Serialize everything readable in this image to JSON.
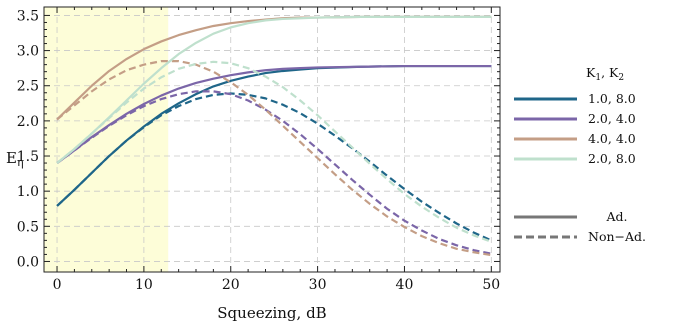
{
  "chart_data": {
    "type": "line",
    "xlabel": "Squeezing, dB",
    "ylabel": "E",
    "ylabel_sub": "η",
    "xlim": [
      -1.5,
      51
    ],
    "ylim": [
      -0.15,
      3.62
    ],
    "xticks": [
      0,
      10,
      20,
      30,
      40,
      50
    ],
    "yticks": [
      0.0,
      0.5,
      1.0,
      1.5,
      2.0,
      2.5,
      3.0,
      3.5
    ],
    "xtick_labels": [
      "0",
      "10",
      "20",
      "30",
      "40",
      "50"
    ],
    "ytick_labels": [
      "0.0",
      "0.5",
      "1.0",
      "1.5",
      "2.0",
      "2.5",
      "3.0",
      "3.5"
    ],
    "grid": true,
    "highlight_region": {
      "x_start": -1.5,
      "x_end": 12.8,
      "color": "#fdfdd8"
    },
    "legend": {
      "placement": "right",
      "header_K": "K",
      "header_sub1": "1",
      "header_sep": ", K",
      "header_sub2": "2",
      "entries": [
        {
          "label": "1.0, 8.0",
          "color": "#1f6689"
        },
        {
          "label": "2.0, 4.0",
          "color": "#7b66a8"
        },
        {
          "label": "4.0, 4.0",
          "color": "#c49e86"
        },
        {
          "label": "2.0, 8.0",
          "color": "#bfe0cd"
        }
      ],
      "style_entries": [
        {
          "label": "Ad.",
          "style": "solid",
          "color": "#777777"
        },
        {
          "label": "Non−Ad.",
          "style": "dashed",
          "color": "#777777"
        }
      ]
    },
    "series": [
      {
        "key": "1.0, 8.0",
        "style": "solid",
        "color": "#1f6689",
        "x": [
          0,
          2,
          4,
          6,
          8,
          10,
          12,
          14,
          16,
          18,
          20,
          22,
          24,
          26,
          28,
          30,
          35,
          40,
          45,
          50
        ],
        "y": [
          0.79,
          1.02,
          1.26,
          1.5,
          1.72,
          1.92,
          2.1,
          2.25,
          2.38,
          2.49,
          2.57,
          2.63,
          2.68,
          2.71,
          2.73,
          2.75,
          2.77,
          2.78,
          2.78,
          2.78
        ]
      },
      {
        "key": "1.0, 8.0",
        "style": "dashed",
        "color": "#1f6689",
        "x": [
          0,
          2,
          4,
          6,
          8,
          10,
          12,
          14,
          16,
          18,
          20,
          22,
          24,
          26,
          28,
          30,
          32,
          34,
          36,
          38,
          40,
          42,
          44,
          46,
          48,
          50
        ],
        "y": [
          0.79,
          1.02,
          1.26,
          1.5,
          1.72,
          1.91,
          2.08,
          2.21,
          2.31,
          2.37,
          2.39,
          2.37,
          2.32,
          2.23,
          2.11,
          1.96,
          1.79,
          1.61,
          1.42,
          1.22,
          1.03,
          0.85,
          0.69,
          0.54,
          0.41,
          0.3
        ]
      },
      {
        "key": "2.0, 4.0",
        "style": "solid",
        "color": "#7b66a8",
        "x": [
          0,
          2,
          4,
          6,
          8,
          10,
          12,
          14,
          16,
          18,
          20,
          22,
          24,
          26,
          28,
          30,
          35,
          40,
          45,
          50
        ],
        "y": [
          1.4,
          1.58,
          1.77,
          1.94,
          2.1,
          2.24,
          2.36,
          2.46,
          2.54,
          2.6,
          2.65,
          2.69,
          2.72,
          2.74,
          2.75,
          2.76,
          2.77,
          2.78,
          2.78,
          2.78
        ]
      },
      {
        "key": "2.0, 4.0",
        "style": "dashed",
        "color": "#7b66a8",
        "x": [
          0,
          2,
          4,
          6,
          8,
          10,
          12,
          14,
          16,
          18,
          20,
          22,
          24,
          26,
          28,
          30,
          32,
          34,
          36,
          38,
          40,
          42,
          44,
          46,
          48,
          50
        ],
        "y": [
          1.4,
          1.58,
          1.76,
          1.93,
          2.08,
          2.21,
          2.31,
          2.38,
          2.42,
          2.42,
          2.38,
          2.29,
          2.16,
          2.0,
          1.81,
          1.6,
          1.38,
          1.16,
          0.95,
          0.75,
          0.58,
          0.44,
          0.32,
          0.23,
          0.16,
          0.11
        ]
      },
      {
        "key": "4.0, 4.0",
        "style": "solid",
        "color": "#c49e86",
        "x": [
          0,
          2,
          4,
          6,
          8,
          10,
          12,
          14,
          16,
          18,
          20,
          22,
          24,
          26,
          28,
          30,
          35,
          40,
          45,
          50
        ],
        "y": [
          2.02,
          2.26,
          2.5,
          2.71,
          2.88,
          3.02,
          3.13,
          3.22,
          3.29,
          3.35,
          3.39,
          3.42,
          3.44,
          3.46,
          3.47,
          3.47,
          3.48,
          3.48,
          3.48,
          3.48
        ]
      },
      {
        "key": "4.0, 4.0",
        "style": "dashed",
        "color": "#c49e86",
        "x": [
          0,
          2,
          4,
          6,
          8,
          10,
          12,
          14,
          16,
          18,
          20,
          22,
          24,
          26,
          28,
          30,
          32,
          34,
          36,
          38,
          40,
          42,
          44,
          46,
          48,
          50
        ],
        "y": [
          2.02,
          2.22,
          2.42,
          2.59,
          2.72,
          2.8,
          2.85,
          2.85,
          2.8,
          2.7,
          2.55,
          2.37,
          2.16,
          1.93,
          1.7,
          1.47,
          1.24,
          1.02,
          0.82,
          0.64,
          0.49,
          0.36,
          0.26,
          0.18,
          0.13,
          0.09
        ]
      },
      {
        "key": "2.0, 8.0",
        "style": "solid",
        "color": "#bfe0cd",
        "x": [
          0,
          2,
          4,
          6,
          8,
          10,
          12,
          14,
          16,
          18,
          20,
          22,
          24,
          26,
          28,
          30,
          35,
          40,
          45,
          50
        ],
        "y": [
          1.4,
          1.6,
          1.82,
          2.05,
          2.29,
          2.53,
          2.75,
          2.95,
          3.11,
          3.24,
          3.33,
          3.39,
          3.43,
          3.45,
          3.46,
          3.47,
          3.48,
          3.48,
          3.48,
          3.48
        ]
      },
      {
        "key": "2.0, 8.0",
        "style": "dashed",
        "color": "#bfe0cd",
        "x": [
          0,
          2,
          4,
          6,
          8,
          10,
          12,
          14,
          16,
          18,
          20,
          22,
          24,
          26,
          28,
          30,
          32,
          34,
          36,
          38,
          40,
          42,
          44,
          46,
          48,
          50
        ],
        "y": [
          1.4,
          1.6,
          1.82,
          2.04,
          2.26,
          2.46,
          2.62,
          2.74,
          2.81,
          2.84,
          2.82,
          2.75,
          2.63,
          2.48,
          2.29,
          2.08,
          1.85,
          1.62,
          1.39,
          1.17,
          0.96,
          0.78,
          0.62,
          0.48,
          0.37,
          0.28
        ]
      }
    ]
  }
}
